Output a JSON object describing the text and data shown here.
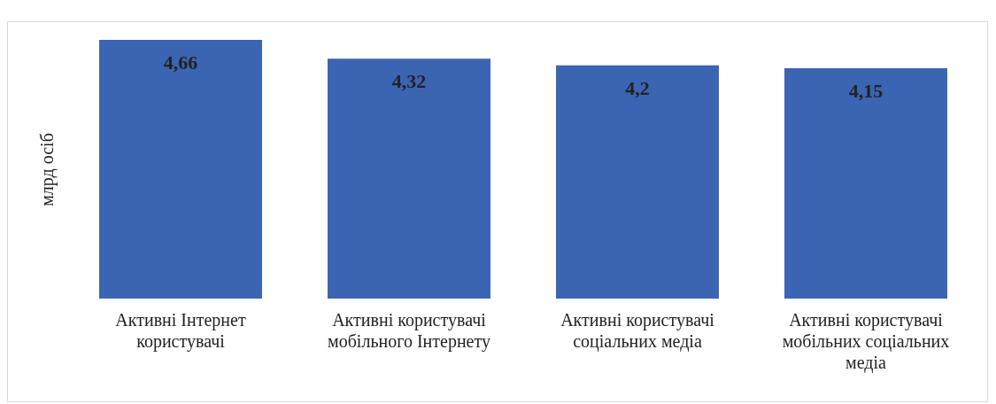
{
  "chart_data": {
    "type": "bar",
    "ylabel": "млрд осіб",
    "categories": [
      "Активні Інтернет користувачі",
      "Активні користувачі мобільного Інтернету",
      "Активні користувачі соціальних медіа",
      "Активні користувачі мобільних соціальних медіа"
    ],
    "values": [
      4.66,
      4.32,
      4.2,
      4.15
    ],
    "value_labels": [
      "4,66",
      "4,32",
      "4,2",
      "4,15"
    ],
    "color": "#3b64b3",
    "tick_labels": "x"
  }
}
